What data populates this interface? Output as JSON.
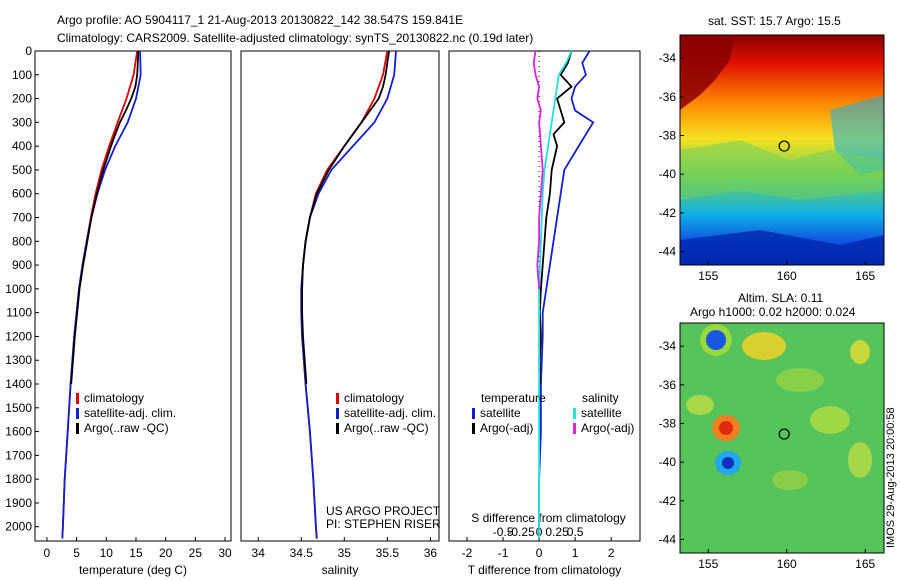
{
  "header": {
    "line1": "Argo profile: AO 5904117_1 21-Aug-2013 20130822_142 38.547S 159.841E",
    "line2": "Climatology: CARS2009. Satellite-adjusted climatology: synTS_20130822.nc (0.19d later)"
  },
  "credits": {
    "project": "US ARGO PROJECT",
    "pi": "PI: STEPHEN RISER",
    "stamp": "IMOS 29-Aug-2013 20:00:58"
  },
  "colors": {
    "climatology": "#e00000",
    "satellite": "#1020d0",
    "argo": "#000000",
    "sal_satellite": "#20e0e0",
    "sal_argo": "#e020e0"
  },
  "chart_data": [
    {
      "type": "line",
      "xlabel": "temperature (deg C)",
      "ylabel": "",
      "xlim": [
        -2,
        31
      ],
      "ylim": [
        2060,
        0
      ],
      "xticks": [
        0,
        5,
        10,
        15,
        20,
        25,
        30
      ],
      "yticks": [
        0,
        100,
        200,
        300,
        400,
        500,
        600,
        700,
        800,
        900,
        1000,
        1100,
        1200,
        1300,
        1400,
        1500,
        1600,
        1700,
        1800,
        1900,
        2000
      ],
      "legend": [
        "climatology",
        "satellite-adj. clim.",
        "Argo(..raw -QC)"
      ],
      "legend_position": "lower-right",
      "series": [
        {
          "name": "climatology",
          "color": "#e00000",
          "depth": [
            0,
            100,
            200,
            300,
            400,
            500,
            600,
            700,
            800,
            900,
            1000,
            1200,
            1400,
            1600,
            1800,
            2000,
            2050
          ],
          "values": [
            15.2,
            14.6,
            13.4,
            11.9,
            10.5,
            9.2,
            8.2,
            7.4,
            6.7,
            6.0,
            5.4,
            4.6,
            4.0,
            3.5,
            3.0,
            2.7,
            2.6
          ]
        },
        {
          "name": "satellite-adj. clim.",
          "color": "#1020d0",
          "depth": [
            0,
            100,
            200,
            300,
            400,
            500,
            600,
            700,
            800,
            900,
            1000,
            1200,
            1400,
            1600,
            1800,
            2000,
            2050
          ],
          "values": [
            15.7,
            15.8,
            15.0,
            13.6,
            11.5,
            9.8,
            8.5,
            7.5,
            6.7,
            6.0,
            5.4,
            4.6,
            4.0,
            3.5,
            3.0,
            2.7,
            2.6
          ]
        },
        {
          "name": "Argo(..raw -QC)",
          "color": "#000000",
          "depth": [
            0,
            50,
            100,
            150,
            200,
            250,
            300,
            350,
            400,
            500,
            600,
            700,
            800,
            900,
            1000,
            1100,
            1200,
            1300,
            1400
          ],
          "values": [
            15.4,
            15.3,
            15.2,
            14.9,
            14.2,
            13.3,
            12.3,
            11.5,
            10.8,
            9.5,
            8.4,
            7.5,
            6.8,
            6.1,
            5.5,
            5.1,
            4.7,
            4.4,
            4.1
          ]
        }
      ]
    },
    {
      "type": "line",
      "xlabel": "salinity",
      "ylabel": "",
      "xlim": [
        33.8,
        36.1
      ],
      "ylim": [
        2060,
        0
      ],
      "xticks": [
        34,
        34.5,
        35,
        35.5,
        36
      ],
      "legend": [
        "climatology",
        "satellite-adj. clim.",
        "Argo(..raw -QC)"
      ],
      "legend_position": "lower-right",
      "series": [
        {
          "name": "climatology",
          "color": "#e00000",
          "depth": [
            0,
            100,
            200,
            300,
            400,
            500,
            600,
            700,
            800,
            900,
            1000,
            1100,
            1200,
            1400,
            1600,
            1800,
            2000,
            2050
          ],
          "values": [
            35.5,
            35.45,
            35.35,
            35.2,
            35.0,
            34.8,
            34.67,
            34.6,
            34.55,
            34.52,
            34.5,
            34.5,
            34.51,
            34.55,
            34.6,
            34.64,
            34.67,
            34.68
          ]
        },
        {
          "name": "satellite-adj. clim.",
          "color": "#1020d0",
          "depth": [
            0,
            100,
            200,
            300,
            400,
            500,
            600,
            700,
            800,
            900,
            1000,
            1100,
            1200,
            1400,
            1600,
            1800,
            2000,
            2050
          ],
          "values": [
            35.6,
            35.58,
            35.5,
            35.35,
            35.1,
            34.85,
            34.7,
            34.6,
            34.55,
            34.52,
            34.5,
            34.5,
            34.51,
            34.55,
            34.6,
            34.64,
            34.67,
            34.68
          ]
        },
        {
          "name": "Argo(..raw -QC)",
          "color": "#000000",
          "depth": [
            0,
            50,
            100,
            150,
            200,
            250,
            300,
            400,
            500,
            600,
            700,
            800,
            900,
            1000,
            1100,
            1200,
            1300,
            1400
          ],
          "values": [
            35.52,
            35.5,
            35.48,
            35.45,
            35.4,
            35.3,
            35.2,
            35.0,
            34.82,
            34.68,
            34.6,
            34.55,
            34.52,
            34.51,
            34.51,
            34.52,
            34.54,
            34.56
          ]
        }
      ]
    },
    {
      "type": "line",
      "title": "S difference from climatology",
      "xlabel": "T difference from climatology",
      "xlim": [
        -2.5,
        2.8
      ],
      "ylim": [
        2060,
        0
      ],
      "xticks": [
        -2,
        -1,
        0,
        1,
        2
      ],
      "top_xticks": [
        {
          "value": -1,
          "label": "-0.5"
        },
        {
          "value": -0.5,
          "label": "-0.25"
        },
        {
          "value": 0,
          "label": "0"
        },
        {
          "value": 0.5,
          "label": "0.25"
        },
        {
          "value": 1,
          "label": "0.5"
        }
      ],
      "legend": {
        "temperature_header": "temperature",
        "salinity_header": "salinity",
        "temperature_items": [
          "satellite",
          "Argo(-adj)"
        ],
        "salinity_items": [
          "satellite",
          "Argo(-adj)"
        ]
      },
      "legend_position": "lower-right",
      "series": [
        {
          "name": "satellite",
          "quantity": "temperature",
          "color": "#1020d0",
          "depth": [
            0,
            50,
            100,
            150,
            200,
            250,
            300,
            350,
            400,
            500,
            600,
            700,
            800,
            900,
            1000,
            1100,
            1200,
            1400,
            1600,
            1800,
            2000,
            2050
          ],
          "values": [
            1.4,
            1.2,
            1.3,
            1.0,
            0.9,
            1.0,
            1.5,
            1.3,
            1.1,
            0.7,
            0.6,
            0.5,
            0.4,
            0.3,
            0.2,
            0.1,
            0.1,
            0.05,
            0.05,
            0.0,
            0.0,
            0.0
          ]
        },
        {
          "name": "Argo(-adj)",
          "quantity": "temperature",
          "color": "#000000",
          "depth": [
            0,
            50,
            100,
            150,
            200,
            250,
            300,
            350,
            400,
            500,
            600,
            700,
            800,
            900,
            1000,
            1100,
            1200,
            1300,
            1400
          ],
          "values": [
            0.9,
            0.8,
            0.6,
            0.9,
            0.5,
            0.6,
            0.7,
            0.4,
            0.5,
            0.35,
            0.3,
            0.2,
            0.15,
            0.1,
            0.05,
            0.02,
            0.05,
            0.02,
            0.03
          ]
        },
        {
          "name": "satellite",
          "quantity": "salinity",
          "color": "#20e0e0",
          "depth": [
            0,
            50,
            100,
            150,
            200,
            300,
            400,
            500,
            600,
            800,
            1000,
            1200,
            1400,
            1600,
            1800,
            2000,
            2050
          ],
          "values": [
            0.9,
            0.75,
            0.55,
            0.5,
            0.45,
            0.35,
            0.25,
            0.15,
            0.1,
            0.05,
            0.0,
            0.0,
            0.0,
            0.0,
            0.0,
            0.0,
            0.0
          ]
        },
        {
          "name": "Argo(-adj)",
          "quantity": "salinity",
          "color": "#e020e0",
          "depth": [
            0,
            50,
            100,
            150,
            200,
            250,
            300,
            400,
            500,
            600,
            700,
            800,
            900,
            1000
          ],
          "values": [
            -0.1,
            -0.15,
            -0.1,
            0.0,
            -0.05,
            0.05,
            0.0,
            0.05,
            0.1,
            0.05,
            0.0,
            0.0,
            -0.05,
            0.0
          ]
        }
      ]
    },
    {
      "type": "heatmap",
      "title": "sat. SST: 15.7 Argo: 15.5",
      "xlim": [
        153.2,
        166.2
      ],
      "ylim": [
        -44.7,
        -32.8
      ],
      "xticks": [
        155,
        160,
        165
      ],
      "yticks": [
        -34,
        -36,
        -38,
        -40,
        -42,
        -44
      ],
      "marker": {
        "lon": 159.841,
        "lat": -38.547
      }
    },
    {
      "type": "heatmap",
      "title": "Altim. SLA: 0.11",
      "subtitle": "Argo h1000: 0.02 h2000: 0.024",
      "xlim": [
        153.2,
        166.2
      ],
      "ylim": [
        -44.7,
        -32.8
      ],
      "xticks": [
        155,
        160,
        165
      ],
      "yticks": [
        -34,
        -36,
        -38,
        -40,
        -42,
        -44
      ],
      "marker": {
        "lon": 159.841,
        "lat": -38.547
      }
    }
  ]
}
